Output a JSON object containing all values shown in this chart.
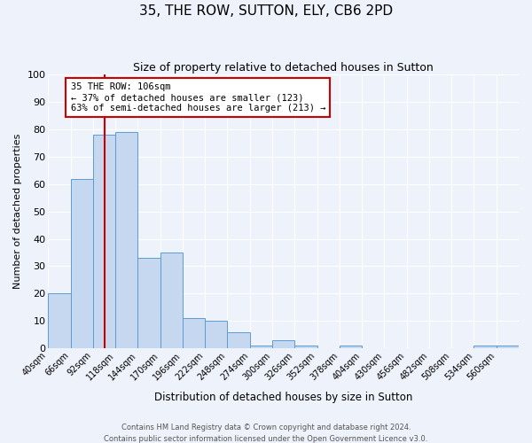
{
  "title": "35, THE ROW, SUTTON, ELY, CB6 2PD",
  "subtitle": "Size of property relative to detached houses in Sutton",
  "xlabel": "Distribution of detached houses by size in Sutton",
  "ylabel": "Number of detached properties",
  "bar_color": "#c5d8f0",
  "bar_edge_color": "#5b9bd5",
  "background_color": "#eef2fa",
  "grid_color": "#ffffff",
  "bin_labels": [
    "40sqm",
    "66sqm",
    "92sqm",
    "118sqm",
    "144sqm",
    "170sqm",
    "196sqm",
    "222sqm",
    "248sqm",
    "274sqm",
    "300sqm",
    "326sqm",
    "352sqm",
    "378sqm",
    "404sqm",
    "430sqm",
    "456sqm",
    "482sqm",
    "508sqm",
    "534sqm",
    "560sqm"
  ],
  "bar_values": [
    20,
    62,
    78,
    79,
    33,
    35,
    11,
    10,
    6,
    1,
    3,
    1,
    0,
    1,
    0,
    0,
    0,
    0,
    0,
    1,
    1
  ],
  "bin_edges": [
    40,
    66,
    92,
    118,
    144,
    170,
    196,
    222,
    248,
    274,
    300,
    326,
    352,
    378,
    404,
    430,
    456,
    482,
    508,
    534,
    560,
    586
  ],
  "ylim": [
    0,
    100
  ],
  "yticks": [
    0,
    10,
    20,
    30,
    40,
    50,
    60,
    70,
    80,
    90,
    100
  ],
  "vline_x": 106,
  "vline_color": "#cc0000",
  "annotation_text": "35 THE ROW: 106sqm\n← 37% of detached houses are smaller (123)\n63% of semi-detached houses are larger (213) →",
  "annotation_box_color": "#ffffff",
  "annotation_box_edge_color": "#cc0000",
  "footer_line1": "Contains HM Land Registry data © Crown copyright and database right 2024.",
  "footer_line2": "Contains public sector information licensed under the Open Government Licence v3.0."
}
